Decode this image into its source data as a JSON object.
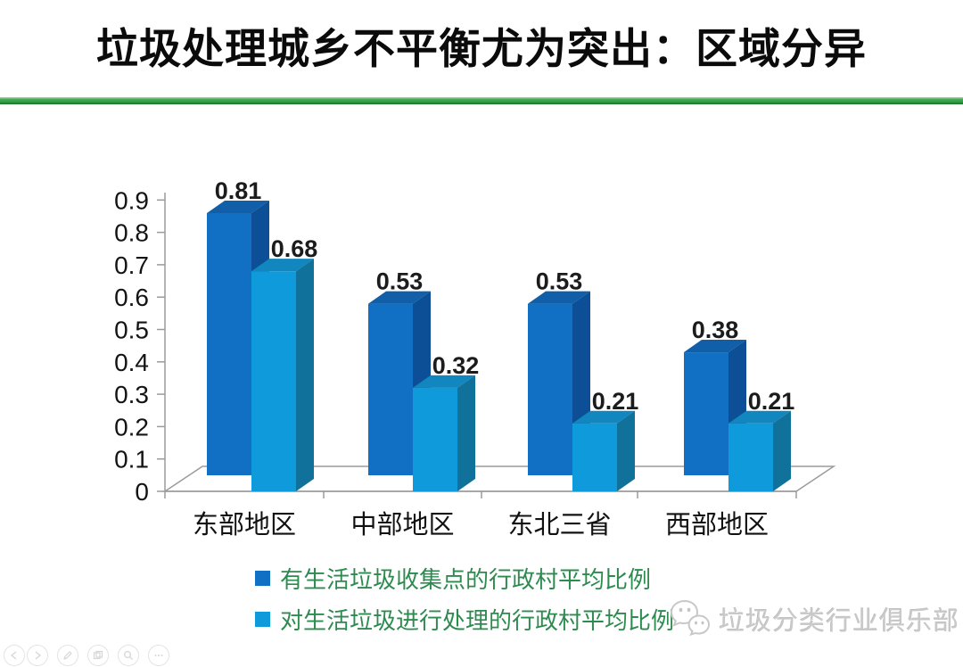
{
  "slide": {
    "title": "垃圾处理城乡不平衡尤为突出：区域分异",
    "accent_green": "#2f9e43"
  },
  "chart_data": {
    "type": "bar",
    "variant": "3d-clustered-column",
    "title": "",
    "xlabel": "",
    "ylabel": "",
    "categories": [
      "东部地区",
      "中部地区",
      "东北三省",
      "西部地区"
    ],
    "series": [
      {
        "name": "有生活垃圾收集点的行政村平均比例",
        "values": [
          0.81,
          0.53,
          0.53,
          0.38
        ],
        "color": "#1170c4",
        "side_color": "#0d4f97",
        "top_color": "#115fa9"
      },
      {
        "name": "对生活垃圾进行处理的行政村平均比例",
        "values": [
          0.68,
          0.32,
          0.21,
          0.21
        ],
        "color": "#0f9bdb",
        "side_color": "#10719b",
        "top_color": "#1186bf"
      }
    ],
    "data_labels": [
      [
        "0.81",
        "0.53",
        "0.53",
        "0.38"
      ],
      [
        "0.68",
        "0.32",
        "0.21",
        "0.21"
      ]
    ],
    "y_ticks": [
      "0",
      "0.1",
      "0.2",
      "0.3",
      "0.4",
      "0.5",
      "0.6",
      "0.7",
      "0.8",
      "0.9"
    ],
    "ylim": [
      0,
      0.9
    ],
    "grid": false,
    "legend_position": "bottom",
    "legend_text_color": "#2e8b50",
    "axis_color": "#9b9b9b",
    "label_color": "#1c1c1c"
  },
  "watermark": {
    "text": "垃圾分类行业俱乐部",
    "icon": "wechat-icon"
  },
  "presenter_controls": [
    {
      "name": "prev-slide",
      "icon": "left-arrow-icon"
    },
    {
      "name": "next-slide",
      "icon": "right-arrow-icon"
    },
    {
      "name": "pen-tool",
      "icon": "pen-icon"
    },
    {
      "name": "slide-overview",
      "icon": "slides-grid-icon"
    },
    {
      "name": "zoom-tool",
      "icon": "magnifier-icon"
    },
    {
      "name": "more-options",
      "icon": "ellipsis-icon"
    }
  ]
}
